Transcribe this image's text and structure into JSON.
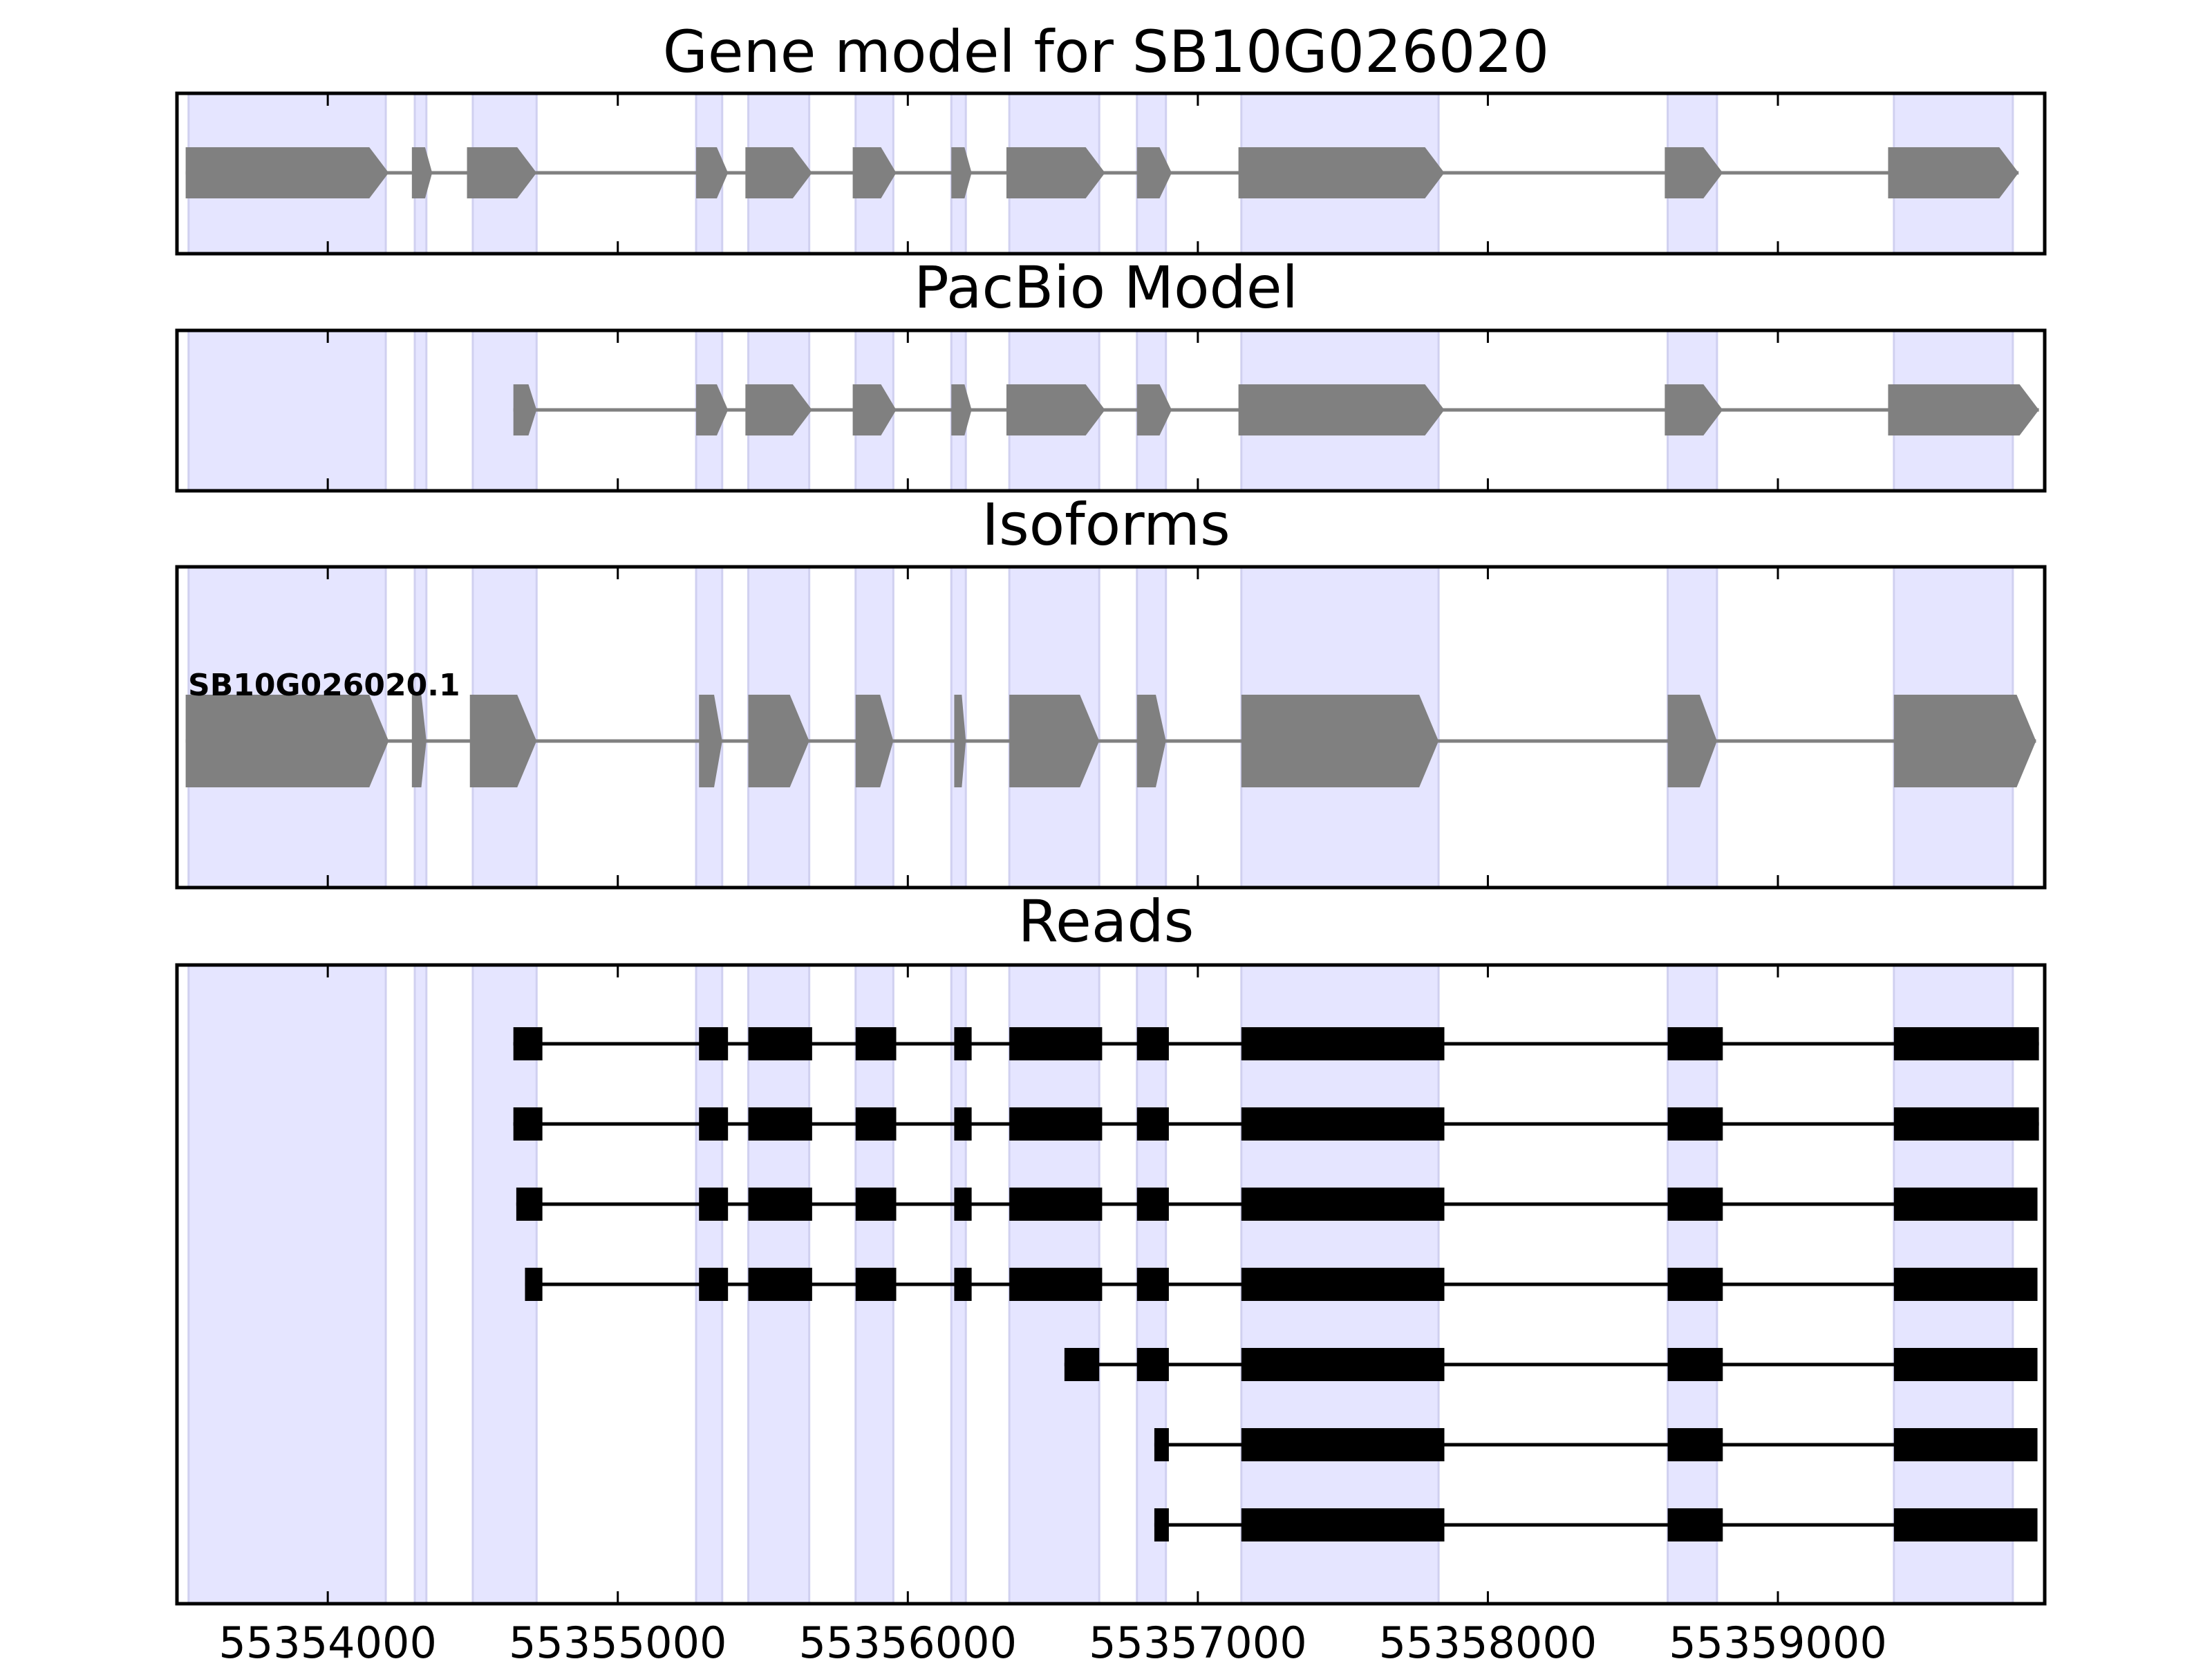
{
  "chart_data": {
    "type": "gene-structure",
    "xlim": [
      55353480,
      55359920
    ],
    "x_ticks": [
      55354000,
      55355000,
      55356000,
      55357000,
      55358000,
      55359000
    ],
    "tick_labels": [
      "55354000",
      "55355000",
      "55356000",
      "55357000",
      "55358000",
      "55359000"
    ],
    "shaded_exons": [
      [
        55353520,
        55354200
      ],
      [
        55354300,
        55354340
      ],
      [
        55354500,
        55354720
      ],
      [
        55355270,
        55355360
      ],
      [
        55355450,
        55355660
      ],
      [
        55355820,
        55355950
      ],
      [
        55356150,
        55356200
      ],
      [
        55356350,
        55356660
      ],
      [
        55356790,
        55356890
      ],
      [
        55357150,
        55357830
      ],
      [
        55358620,
        55358790
      ],
      [
        55359400,
        55359810
      ]
    ],
    "panels": [
      {
        "title": "Gene model for SB10G026020",
        "style": "arrow",
        "color": "#808080",
        "tracks": [
          {
            "exons": [
              [
                55353510,
                55354210
              ],
              [
                55354290,
                55354360
              ],
              [
                55354480,
                55354720
              ],
              [
                55355270,
                55355380
              ],
              [
                55355440,
                55355670
              ],
              [
                55355810,
                55355960
              ],
              [
                55356150,
                55356220
              ],
              [
                55356340,
                55356680
              ],
              [
                55356790,
                55356910
              ],
              [
                55357140,
                55357850
              ],
              [
                55358610,
                55358810
              ],
              [
                55359380,
                55359830
              ]
            ]
          }
        ]
      },
      {
        "title": "PacBio Model",
        "style": "arrow",
        "color": "#808080",
        "tracks": [
          {
            "exons": [
              [
                55354640,
                55354720
              ],
              [
                55355270,
                55355380
              ],
              [
                55355440,
                55355670
              ],
              [
                55355810,
                55355960
              ],
              [
                55356150,
                55356220
              ],
              [
                55356340,
                55356680
              ],
              [
                55356790,
                55356910
              ],
              [
                55357140,
                55357850
              ],
              [
                55358610,
                55358810
              ],
              [
                55359380,
                55359900
              ]
            ]
          }
        ]
      },
      {
        "title": "Isoforms",
        "style": "arrow",
        "color": "#808080",
        "tracks": [
          {
            "label": "SB10G026020.1",
            "exons": [
              [
                55353510,
                55354210
              ],
              [
                55354290,
                55354340
              ],
              [
                55354490,
                55354720
              ],
              [
                55355280,
                55355360
              ],
              [
                55355450,
                55355660
              ],
              [
                55355820,
                55355950
              ],
              [
                55356160,
                55356200
              ],
              [
                55356350,
                55356660
              ],
              [
                55356790,
                55356890
              ],
              [
                55357150,
                55357830
              ],
              [
                55358620,
                55358790
              ],
              [
                55359400,
                55359890
              ]
            ]
          }
        ]
      },
      {
        "title": "Reads",
        "style": "block",
        "color": "#000000",
        "tracks": [
          {
            "exons": [
              [
                55354640,
                55354740
              ],
              [
                55355280,
                55355380
              ],
              [
                55355450,
                55355670
              ],
              [
                55355820,
                55355960
              ],
              [
                55356160,
                55356220
              ],
              [
                55356350,
                55356670
              ],
              [
                55356790,
                55356900
              ],
              [
                55357150,
                55357850
              ],
              [
                55358620,
                55358810
              ],
              [
                55359400,
                55359900
              ]
            ]
          },
          {
            "exons": [
              [
                55354640,
                55354740
              ],
              [
                55355280,
                55355380
              ],
              [
                55355450,
                55355670
              ],
              [
                55355820,
                55355960
              ],
              [
                55356160,
                55356220
              ],
              [
                55356350,
                55356670
              ],
              [
                55356790,
                55356900
              ],
              [
                55357150,
                55357850
              ],
              [
                55358620,
                55358810
              ],
              [
                55359400,
                55359900
              ]
            ]
          },
          {
            "exons": [
              [
                55354650,
                55354740
              ],
              [
                55355280,
                55355380
              ],
              [
                55355450,
                55355670
              ],
              [
                55355820,
                55355960
              ],
              [
                55356160,
                55356220
              ],
              [
                55356350,
                55356670
              ],
              [
                55356790,
                55356900
              ],
              [
                55357150,
                55357850
              ],
              [
                55358620,
                55358810
              ],
              [
                55359400,
                55359895
              ]
            ]
          },
          {
            "exons": [
              [
                55354680,
                55354740
              ],
              [
                55355280,
                55355380
              ],
              [
                55355450,
                55355670
              ],
              [
                55355820,
                55355960
              ],
              [
                55356160,
                55356220
              ],
              [
                55356350,
                55356670
              ],
              [
                55356790,
                55356900
              ],
              [
                55357150,
                55357850
              ],
              [
                55358620,
                55358810
              ],
              [
                55359400,
                55359895
              ]
            ]
          },
          {
            "exons": [
              [
                55356540,
                55356660
              ],
              [
                55356790,
                55356900
              ],
              [
                55357150,
                55357850
              ],
              [
                55358620,
                55358810
              ],
              [
                55359400,
                55359895
              ]
            ]
          },
          {
            "exons": [
              [
                55356850,
                55356900
              ],
              [
                55357150,
                55357850
              ],
              [
                55358620,
                55358810
              ],
              [
                55359400,
                55359895
              ]
            ]
          },
          {
            "exons": [
              [
                55356850,
                55356900
              ],
              [
                55357150,
                55357850
              ],
              [
                55358620,
                55358810
              ],
              [
                55359400,
                55359895
              ]
            ]
          }
        ]
      }
    ]
  },
  "colors": {
    "exon_shade": "#e5e5ff",
    "exon_shade_edge": "#d0d0f0",
    "model_fill": "#808080",
    "read_fill": "#000000",
    "axes": "#000000"
  }
}
